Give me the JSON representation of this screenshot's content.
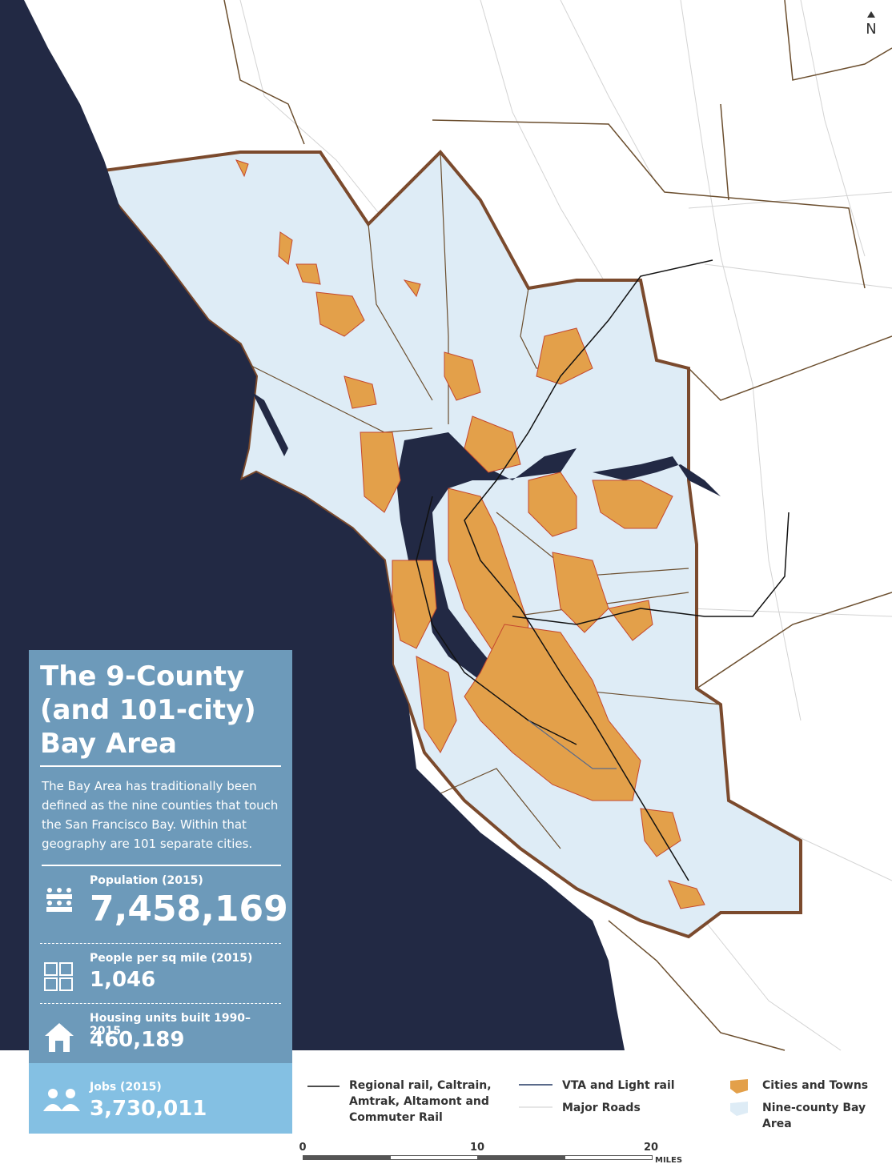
{
  "north": "N",
  "info_panel": {
    "title_lines": [
      "The 9-County",
      "(and 101-city)",
      "Bay Area"
    ],
    "description": "The Bay Area has traditionally been defined as the nine counties that touch the San Francisco Bay. Within that geography are 101 separate cities.",
    "stats": [
      {
        "label": "Population (2015)",
        "value": "7,458,169"
      },
      {
        "label": "People per sq mile (2015)",
        "value": "1,046"
      },
      {
        "label": "Housing units built 1990–2015",
        "value": "460,189"
      },
      {
        "label": "Jobs (2015)",
        "value": "3,730,011"
      }
    ]
  },
  "legend": {
    "items": [
      {
        "label": "Regional rail, Caltrain, Amtrak, Altamont and Commuter Rail"
      },
      {
        "label": "VTA and Light rail"
      },
      {
        "label": "Major Roads"
      },
      {
        "label": "Cities and Towns"
      },
      {
        "label": "Nine-county Bay Area"
      }
    ]
  },
  "scale_bar": {
    "ticks": [
      0,
      10,
      20
    ],
    "unit": "MILES"
  }
}
